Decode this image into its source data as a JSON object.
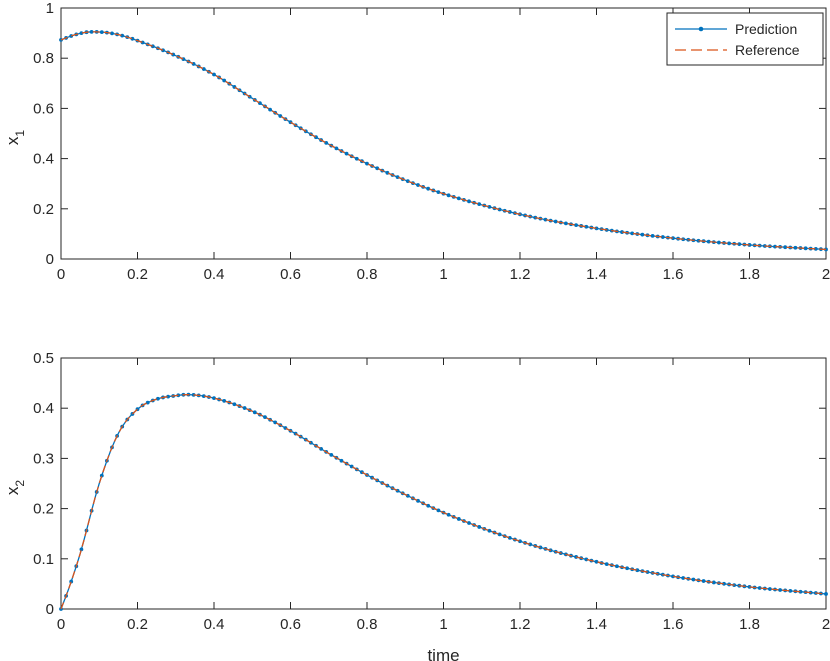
{
  "colors": {
    "prediction": "#0072BD",
    "reference": "#D95319",
    "axis": "#262626"
  },
  "chart_data": [
    {
      "type": "line",
      "xlabel": "",
      "ylabel": "x",
      "ylabel_sub": "1",
      "xlim": [
        0,
        2
      ],
      "ylim": [
        0,
        1
      ],
      "xticks": [
        "0",
        "0.2",
        "0.4",
        "0.6",
        "0.8",
        "1",
        "1.2",
        "1.4",
        "1.6",
        "1.8",
        "2"
      ],
      "yticks": [
        "0",
        "0.2",
        "0.4",
        "0.6",
        "0.8",
        "1"
      ],
      "grid": false,
      "legend": {
        "position": "top-right",
        "entries": [
          {
            "label": "Prediction",
            "style": "solid line with dot markers"
          },
          {
            "label": "Reference",
            "style": "dashed line"
          }
        ]
      },
      "series": [
        {
          "name": "Prediction",
          "marker": "dot",
          "x": [
            0,
            0.04,
            0.08,
            0.12,
            0.16,
            0.2,
            0.3,
            0.4,
            0.5,
            0.6,
            0.7,
            0.8,
            0.9,
            1.0,
            1.2,
            1.4,
            1.6,
            1.8,
            2.0
          ],
          "y": [
            0.873,
            0.895,
            0.905,
            0.902,
            0.89,
            0.87,
            0.81,
            0.735,
            0.64,
            0.545,
            0.457,
            0.38,
            0.314,
            0.26,
            0.178,
            0.122,
            0.083,
            0.056,
            0.038
          ]
        },
        {
          "name": "Reference",
          "style": "dashed",
          "x": [
            0,
            0.04,
            0.08,
            0.12,
            0.16,
            0.2,
            0.3,
            0.4,
            0.5,
            0.6,
            0.7,
            0.8,
            0.9,
            1.0,
            1.2,
            1.4,
            1.6,
            1.8,
            2.0
          ],
          "y": [
            0.873,
            0.895,
            0.905,
            0.902,
            0.89,
            0.87,
            0.81,
            0.735,
            0.64,
            0.545,
            0.457,
            0.38,
            0.314,
            0.26,
            0.178,
            0.122,
            0.083,
            0.056,
            0.038
          ]
        }
      ]
    },
    {
      "type": "line",
      "xlabel": "time",
      "ylabel": "x",
      "ylabel_sub": "2",
      "xlim": [
        0,
        2
      ],
      "ylim": [
        0,
        0.5
      ],
      "xticks": [
        "0",
        "0.2",
        "0.4",
        "0.6",
        "0.8",
        "1",
        "1.2",
        "1.4",
        "1.6",
        "1.8",
        "2"
      ],
      "yticks": [
        "0",
        "0.1",
        "0.2",
        "0.3",
        "0.4",
        "0.5"
      ],
      "grid": false,
      "series": [
        {
          "name": "Prediction",
          "marker": "dot",
          "x": [
            0,
            0.02,
            0.05,
            0.1,
            0.15,
            0.2,
            0.25,
            0.3,
            0.33,
            0.4,
            0.5,
            0.6,
            0.7,
            0.8,
            0.9,
            1.0,
            1.2,
            1.4,
            1.6,
            1.8,
            2.0
          ],
          "y": [
            0.0,
            0.04,
            0.11,
            0.25,
            0.35,
            0.398,
            0.418,
            0.425,
            0.427,
            0.42,
            0.394,
            0.355,
            0.31,
            0.267,
            0.228,
            0.192,
            0.135,
            0.094,
            0.065,
            0.044,
            0.03
          ]
        },
        {
          "name": "Reference",
          "style": "dashed",
          "x": [
            0,
            0.02,
            0.05,
            0.1,
            0.15,
            0.2,
            0.25,
            0.3,
            0.33,
            0.4,
            0.5,
            0.6,
            0.7,
            0.8,
            0.9,
            1.0,
            1.2,
            1.4,
            1.6,
            1.8,
            2.0
          ],
          "y": [
            0.0,
            0.04,
            0.11,
            0.25,
            0.35,
            0.398,
            0.418,
            0.425,
            0.427,
            0.42,
            0.394,
            0.355,
            0.31,
            0.267,
            0.228,
            0.192,
            0.135,
            0.094,
            0.065,
            0.044,
            0.03
          ]
        }
      ]
    }
  ]
}
